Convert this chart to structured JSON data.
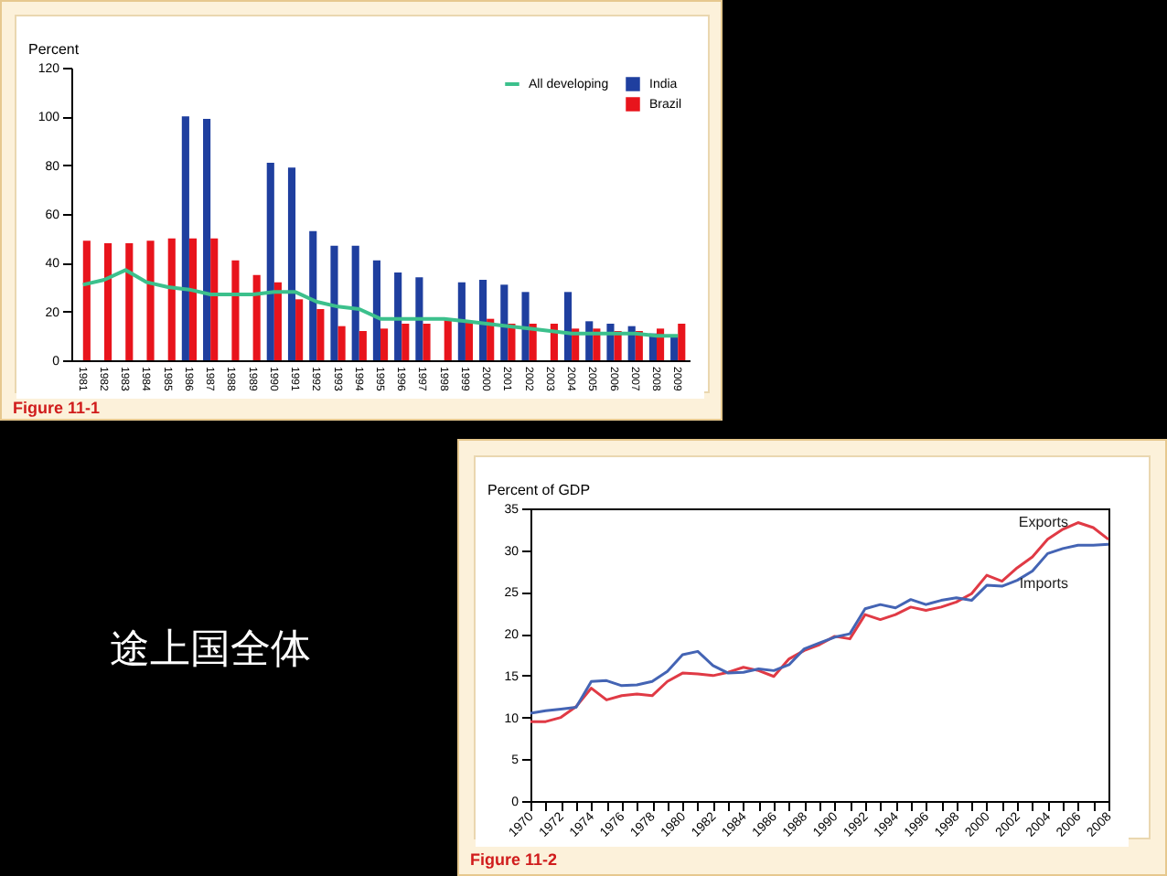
{
  "chart_data": [
    {
      "type": "bar",
      "ylabel": "Percent",
      "categories": [
        "1981",
        "1982",
        "1983",
        "1984",
        "1985",
        "1986",
        "1987",
        "1988",
        "1989",
        "1990",
        "1991",
        "1992",
        "1993",
        "1994",
        "1995",
        "1996",
        "1997",
        "1998",
        "1999",
        "2000",
        "2001",
        "2002",
        "2003",
        "2004",
        "2005",
        "2006",
        "2007",
        "2008",
        "2009"
      ],
      "series": [
        {
          "name": "India",
          "type": "bar",
          "color": "#1f3f9f",
          "values": [
            null,
            null,
            null,
            null,
            null,
            100,
            99,
            null,
            null,
            81,
            79,
            53,
            47,
            47,
            41,
            36,
            34,
            null,
            32,
            33,
            31,
            28,
            null,
            28,
            16,
            15,
            14,
            11,
            10
          ]
        },
        {
          "name": "Brazil",
          "type": "bar",
          "color": "#e8141c",
          "values": [
            49,
            48,
            48,
            49,
            50,
            50,
            50,
            41,
            35,
            32,
            25,
            21,
            14,
            12,
            13,
            15,
            15,
            17,
            16,
            17,
            15,
            15,
            15,
            13,
            13,
            12,
            12,
            13,
            15
          ]
        },
        {
          "name": "All developing",
          "type": "line",
          "color": "#3cc08c",
          "values": [
            31,
            33,
            37,
            32,
            30,
            29,
            27,
            27,
            27,
            28,
            28,
            24,
            22,
            21,
            17,
            17,
            17,
            17,
            16,
            15,
            14,
            13,
            12,
            11,
            11,
            11,
            11,
            10,
            10
          ]
        }
      ],
      "ylim": [
        0,
        120
      ],
      "yticks": [
        0,
        20,
        40,
        60,
        80,
        100,
        120
      ],
      "legend": "top right",
      "annotations": [
        "Figure 11-1"
      ]
    },
    {
      "type": "other",
      "title": "途上国全体"
    },
    {
      "type": "line",
      "ylabel": "Percent of GDP",
      "x": [
        1970,
        1971,
        1972,
        1973,
        1974,
        1975,
        1976,
        1977,
        1978,
        1979,
        1980,
        1981,
        1982,
        1983,
        1984,
        1985,
        1986,
        1987,
        1988,
        1989,
        1990,
        1991,
        1992,
        1993,
        1994,
        1995,
        1996,
        1997,
        1998,
        1999,
        2000,
        2001,
        2002,
        2003,
        2004,
        2005,
        2006,
        2007,
        2008
      ],
      "series": [
        {
          "name": "Exports",
          "color": "#e03a45",
          "values": [
            9.5,
            9.5,
            10,
            11.3,
            13.5,
            12.1,
            12.6,
            12.8,
            12.6,
            14.3,
            15.3,
            15.2,
            15.0,
            15.4,
            16,
            15.6,
            14.9,
            17,
            18,
            18.7,
            19.7,
            19.4,
            22.3,
            21.7,
            22.3,
            23.2,
            22.8,
            23.2,
            23.8,
            24.8,
            27,
            26.3,
            27.9,
            29.2,
            31.3,
            32.5,
            33.3,
            32.7,
            31.3
          ]
        },
        {
          "name": "Imports",
          "color": "#4464b4",
          "values": [
            10.5,
            10.8,
            11,
            11.2,
            14.3,
            14.4,
            13.8,
            13.9,
            14.3,
            15.5,
            17.5,
            17.9,
            16.2,
            15.3,
            15.4,
            15.8,
            15.6,
            16.3,
            18.2,
            18.9,
            19.6,
            20,
            23,
            23.5,
            23.1,
            24.1,
            23.5,
            24,
            24.3,
            24,
            25.8,
            25.7,
            26.4,
            27.5,
            29.6,
            30.2,
            30.6,
            30.6,
            30.7
          ]
        }
      ],
      "xlim": [
        1970,
        2008
      ],
      "xticks": [
        1970,
        {
          "value": 1971,
          "label": null
        },
        1972,
        {
          "value": 1973,
          "label": null
        },
        1974,
        {
          "value": 1975,
          "label": null
        },
        1976,
        {
          "value": 1977,
          "label": null
        },
        1978,
        {
          "value": 1979,
          "label": null
        },
        1980,
        {
          "value": 1981,
          "label": null
        },
        1982,
        {
          "value": 1983,
          "label": null
        },
        1984,
        {
          "value": 1985,
          "label": null
        },
        1986,
        {
          "value": 1987,
          "label": null
        },
        1988,
        {
          "value": 1989,
          "label": null
        },
        1990,
        {
          "value": 1991,
          "label": null
        },
        1992,
        {
          "value": 1993,
          "label": null
        },
        1994,
        {
          "value": 1995,
          "label": null
        },
        1996,
        {
          "value": 1997,
          "label": null
        },
        1998,
        {
          "value": 1999,
          "label": null
        },
        2000,
        {
          "value": 2001,
          "label": null
        },
        2002,
        {
          "value": 2003,
          "label": null
        },
        2004,
        {
          "value": 2005,
          "label": null
        },
        2006,
        {
          "value": 2007,
          "label": null
        },
        2008
      ],
      "ylim": [
        0,
        35
      ],
      "yticks": [
        0,
        5,
        10,
        15,
        20,
        25,
        30,
        35
      ],
      "annotations": [
        "Figure 11-2"
      ]
    }
  ]
}
